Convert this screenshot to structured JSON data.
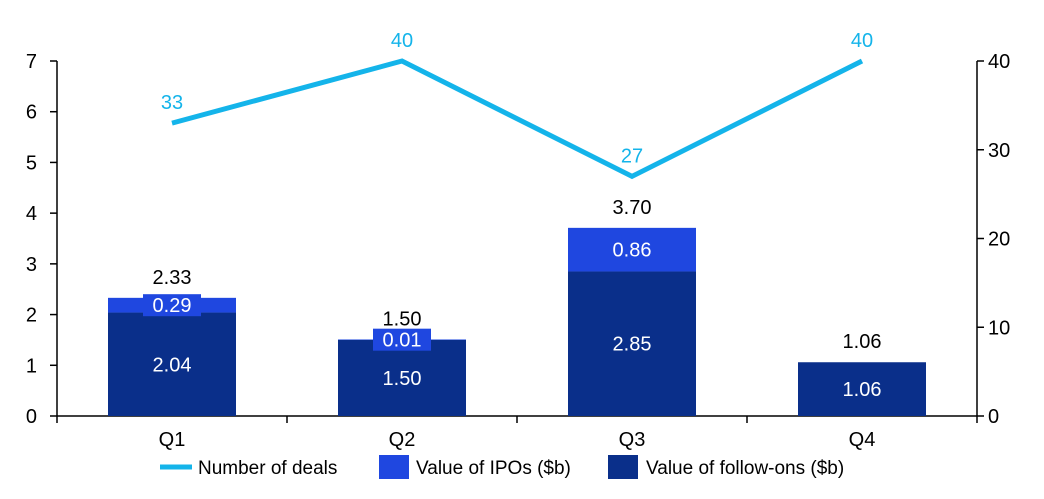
{
  "chart_data": {
    "type": "bar",
    "categories": [
      "Q1",
      "Q2",
      "Q3",
      "Q4"
    ],
    "stacked": true,
    "series": [
      {
        "name": "Value of follow-ons ($b)",
        "kind": "bar",
        "axis": "left",
        "color": "#0a2f8a",
        "values": [
          2.04,
          1.5,
          2.85,
          1.06
        ],
        "labels": [
          "2.04",
          "1.50",
          "2.85",
          "1.06"
        ]
      },
      {
        "name": "Value of IPOs ($b)",
        "kind": "bar",
        "axis": "left",
        "color": "#1f47e0",
        "values": [
          0.29,
          0.01,
          0.86,
          0.0
        ],
        "labels": [
          "0.29",
          "0.01",
          "0.86",
          ""
        ]
      },
      {
        "name": "Number of deals",
        "kind": "line",
        "axis": "right",
        "color": "#14b4ea",
        "values": [
          33,
          40,
          27,
          40
        ],
        "labels": [
          "33",
          "40",
          "27",
          "40"
        ]
      }
    ],
    "totals": [
      "2.33",
      "1.50",
      "3.70",
      "1.06"
    ],
    "y_left": {
      "min": 0,
      "max": 7,
      "ticks": [
        "0",
        "1",
        "2",
        "3",
        "4",
        "5",
        "6",
        "7"
      ]
    },
    "y_right": {
      "min": 0,
      "max": 40,
      "ticks": [
        "0",
        "10",
        "20",
        "30",
        "40"
      ]
    },
    "legend": {
      "position": "bottom",
      "items": [
        "Number of deals",
        "Value of IPOs ($b)",
        "Value of follow-ons ($b)"
      ]
    },
    "grid": false
  }
}
